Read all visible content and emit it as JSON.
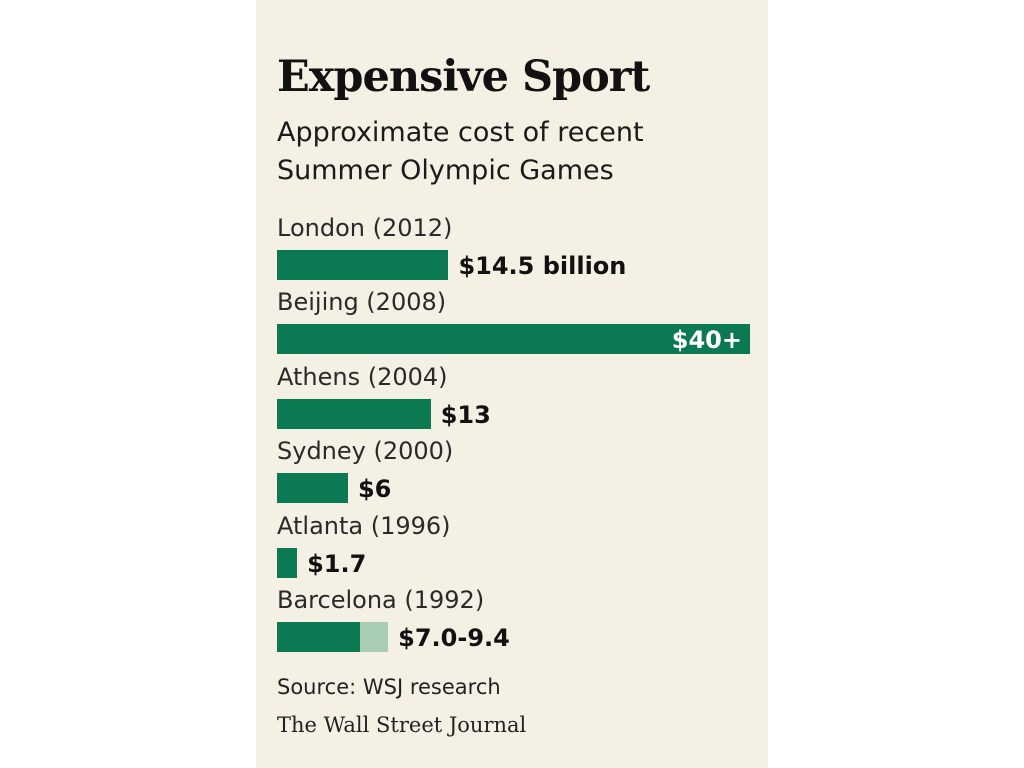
{
  "chart_data": {
    "type": "bar",
    "orientation": "horizontal",
    "title": "Expensive Sport",
    "subtitle": "Approximate cost of recent Summer Olympic Games",
    "categories": [
      "London (2012)",
      "Beijing (2008)",
      "Athens (2004)",
      "Sydney (2000)",
      "Atlanta (1996)",
      "Barcelona (1992)"
    ],
    "values": [
      14.5,
      40,
      13,
      6,
      1.7,
      7.0
    ],
    "ranges": [
      null,
      null,
      null,
      null,
      null,
      [
        7.0,
        9.4
      ]
    ],
    "value_labels": [
      "$14.5 billion",
      "$40+",
      "$13",
      "$6",
      "$1.7",
      "$7.0-9.4"
    ],
    "unit": "billion USD",
    "xlim": [
      0,
      40
    ],
    "grid": false,
    "colors": {
      "bar": "#0b7a52",
      "range_extension": "#a9cdb4",
      "background": "#f5f0e4"
    }
  },
  "footer": {
    "source": "Source: WSJ research",
    "credit": "The Wall Street Journal"
  }
}
